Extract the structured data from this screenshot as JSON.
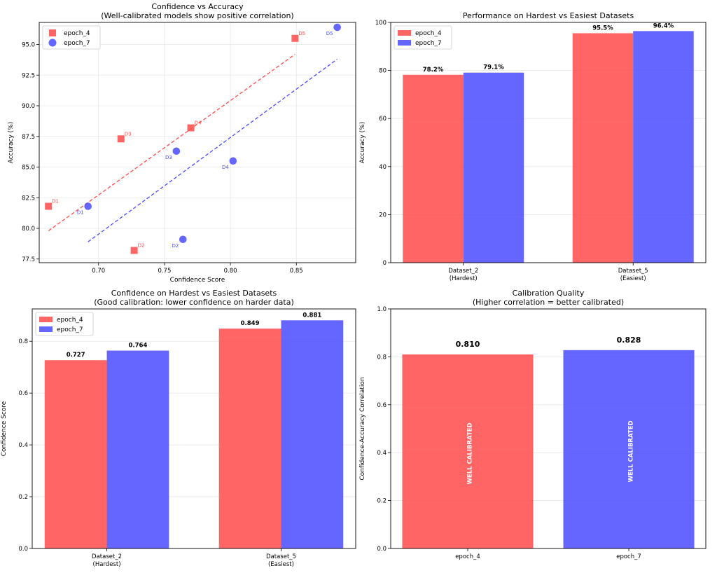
{
  "colors": {
    "epoch_4": "#ff4a4a",
    "epoch_7": "#4a4aff"
  },
  "chart_data": [
    {
      "type": "scatter",
      "title": "Confidence vs Accuracy",
      "subtitle": "(Well-calibrated models show positive correlation)",
      "xlabel": "Confidence Score",
      "ylabel": "Accuracy (%)",
      "xlim": [
        0.655,
        0.895
      ],
      "ylim": [
        77.2,
        96.8
      ],
      "xticks": [
        0.7,
        0.75,
        0.8,
        0.85
      ],
      "yticks": [
        77.5,
        80.0,
        82.5,
        85.0,
        87.5,
        90.0,
        92.5,
        95.0
      ],
      "grid": true,
      "legend": "top-left",
      "series": [
        {
          "name": "epoch_4",
          "marker": "square",
          "points": [
            {
              "label": "D1",
              "x": 0.662,
              "y": 81.8
            },
            {
              "label": "D2",
              "x": 0.727,
              "y": 78.2
            },
            {
              "label": "D3",
              "x": 0.717,
              "y": 87.3
            },
            {
              "label": "D4",
              "x": 0.77,
              "y": 88.2
            },
            {
              "label": "D5",
              "x": 0.849,
              "y": 95.5
            }
          ],
          "trend_x": [
            0.662,
            0.849
          ],
          "trend_y": [
            79.8,
            94.2
          ]
        },
        {
          "name": "epoch_7",
          "marker": "circle",
          "points": [
            {
              "label": "D1",
              "x": 0.692,
              "y": 81.8
            },
            {
              "label": "D2",
              "x": 0.764,
              "y": 79.1
            },
            {
              "label": "D3",
              "x": 0.759,
              "y": 86.3
            },
            {
              "label": "D4",
              "x": 0.802,
              "y": 85.5
            },
            {
              "label": "D5",
              "x": 0.881,
              "y": 96.4
            }
          ],
          "trend_x": [
            0.692,
            0.881
          ],
          "trend_y": [
            78.9,
            93.8
          ]
        }
      ]
    },
    {
      "type": "bar",
      "title": "Performance on Hardest vs Easiest Datasets",
      "ylabel": "Accuracy (%)",
      "ylim": [
        0,
        100
      ],
      "yticks": [
        0,
        20,
        40,
        60,
        80,
        100
      ],
      "categories": [
        [
          "Dataset_2",
          "(Hardest)"
        ],
        [
          "Dataset_5",
          "(Easiest)"
        ]
      ],
      "legend": "top-left",
      "series": [
        {
          "name": "epoch_4",
          "values": [
            78.2,
            95.5
          ],
          "labels": [
            "78.2%",
            "95.5%"
          ]
        },
        {
          "name": "epoch_7",
          "values": [
            79.1,
            96.4
          ],
          "labels": [
            "79.1%",
            "96.4%"
          ]
        }
      ]
    },
    {
      "type": "bar",
      "title": "Confidence on Hardest vs Easiest Datasets",
      "subtitle": "(Good calibration: lower confidence on harder data)",
      "ylabel": "Confidence Score",
      "ylim": [
        0,
        0.925
      ],
      "yticks": [
        0.0,
        0.2,
        0.4,
        0.6,
        0.8
      ],
      "categories": [
        [
          "Dataset_2",
          "(Hardest)"
        ],
        [
          "Dataset_5",
          "(Easiest)"
        ]
      ],
      "legend": "top-left",
      "series": [
        {
          "name": "epoch_4",
          "values": [
            0.727,
            0.849
          ],
          "labels": [
            "0.727",
            "0.849"
          ]
        },
        {
          "name": "epoch_7",
          "values": [
            0.764,
            0.881
          ],
          "labels": [
            "0.764",
            "0.881"
          ]
        }
      ]
    },
    {
      "type": "bar",
      "title": "Calibration Quality",
      "subtitle": "(Higher correlation = better calibrated)",
      "ylabel": "Confidence-Accuracy Correlation",
      "ylim": [
        0,
        1.0
      ],
      "yticks": [
        0.0,
        0.2,
        0.4,
        0.6,
        0.8,
        1.0
      ],
      "categories": [
        "epoch_4",
        "epoch_7"
      ],
      "values": [
        0.81,
        0.828
      ],
      "labels": [
        "0.810",
        "0.828"
      ],
      "annotations": [
        "WELL CALIBRATED",
        "WELL CALIBRATED"
      ]
    }
  ]
}
